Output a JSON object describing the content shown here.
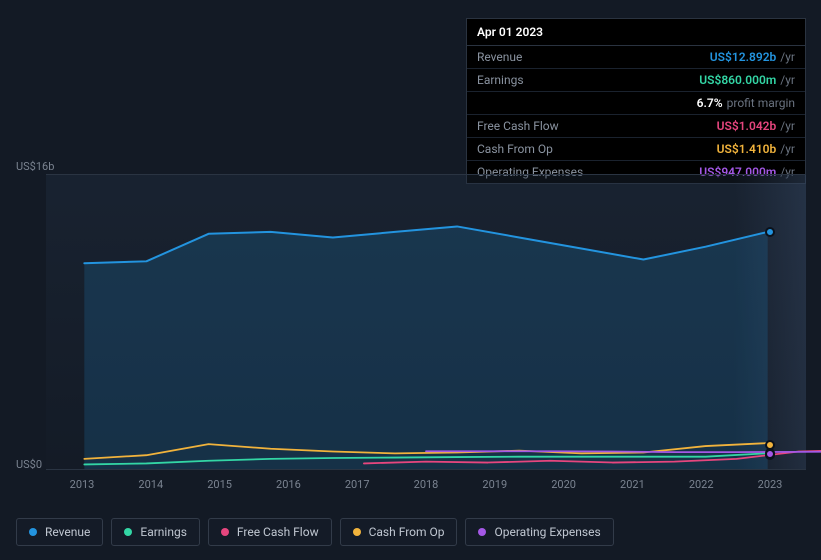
{
  "tooltip": {
    "date": "Apr 01 2023",
    "rows": [
      {
        "label": "Revenue",
        "value": "US$12.892b",
        "unit": "/yr",
        "color": "#2394df"
      },
      {
        "label": "Earnings",
        "value": "US$860.000m",
        "unit": "/yr",
        "color": "#33d6a5",
        "sub_value": "6.7%",
        "sub_label": "profit margin"
      },
      {
        "label": "Free Cash Flow",
        "value": "US$1.042b",
        "unit": "/yr",
        "color": "#e6467e"
      },
      {
        "label": "Cash From Op",
        "value": "US$1.410b",
        "unit": "/yr",
        "color": "#f1b33c"
      },
      {
        "label": "Operating Expenses",
        "value": "US$947.000m",
        "unit": "/yr",
        "color": "#a458e6"
      }
    ]
  },
  "chart": {
    "type": "line",
    "background_color": "#131a25",
    "plot_bg_gradient_top": "rgba(35,50,70,0.35)",
    "grid_color": "#2a3442",
    "y_ticks": [
      {
        "label": "US$16b",
        "value": 16
      },
      {
        "label": "US$0",
        "value": 0
      }
    ],
    "ylim": [
      0,
      16
    ],
    "x_categories": [
      "2013",
      "2014",
      "2015",
      "2016",
      "2017",
      "2018",
      "2019",
      "2020",
      "2021",
      "2022",
      "2023"
    ],
    "future_band_from_index": 10.1,
    "series": [
      {
        "name": "Revenue",
        "color": "#2394df",
        "fill": "rgba(35,148,223,0.18)",
        "line_width": 2,
        "values": [
          11.2,
          11.3,
          12.8,
          12.9,
          12.6,
          12.9,
          13.2,
          12.6,
          12.0,
          11.4,
          12.1,
          12.9
        ]
      },
      {
        "name": "Earnings",
        "color": "#33d6a5",
        "line_width": 1.8,
        "values": [
          0.25,
          0.3,
          0.45,
          0.55,
          0.6,
          0.62,
          0.65,
          0.67,
          0.67,
          0.67,
          0.67,
          0.86
        ]
      },
      {
        "name": "Free Cash Flow",
        "color": "#e6467e",
        "line_width": 1.8,
        "start_index": 4.5,
        "values": [
          0.3,
          0.4,
          0.35,
          0.45,
          0.35,
          0.4,
          0.55,
          0.95,
          1.04
        ]
      },
      {
        "name": "Cash From Op",
        "color": "#f1b33c",
        "line_width": 1.8,
        "values": [
          0.55,
          0.75,
          1.35,
          1.1,
          0.95,
          0.85,
          0.9,
          1.0,
          0.85,
          0.9,
          1.25,
          1.41
        ]
      },
      {
        "name": "Operating Expenses",
        "color": "#a458e6",
        "line_width": 1.8,
        "start_index": 5.5,
        "values": [
          0.97,
          0.97,
          0.97,
          0.95,
          0.92,
          0.92,
          0.93,
          0.95
        ]
      }
    ],
    "indicator_x": 11,
    "label_fontsize": 11
  },
  "legend": {
    "items": [
      {
        "label": "Revenue",
        "color": "#2394df",
        "name": "legend-revenue"
      },
      {
        "label": "Earnings",
        "color": "#33d6a5",
        "name": "legend-earnings"
      },
      {
        "label": "Free Cash Flow",
        "color": "#e6467e",
        "name": "legend-free-cash-flow"
      },
      {
        "label": "Cash From Op",
        "color": "#f1b33c",
        "name": "legend-cash-from-op"
      },
      {
        "label": "Operating Expenses",
        "color": "#a458e6",
        "name": "legend-operating-expenses"
      }
    ]
  }
}
